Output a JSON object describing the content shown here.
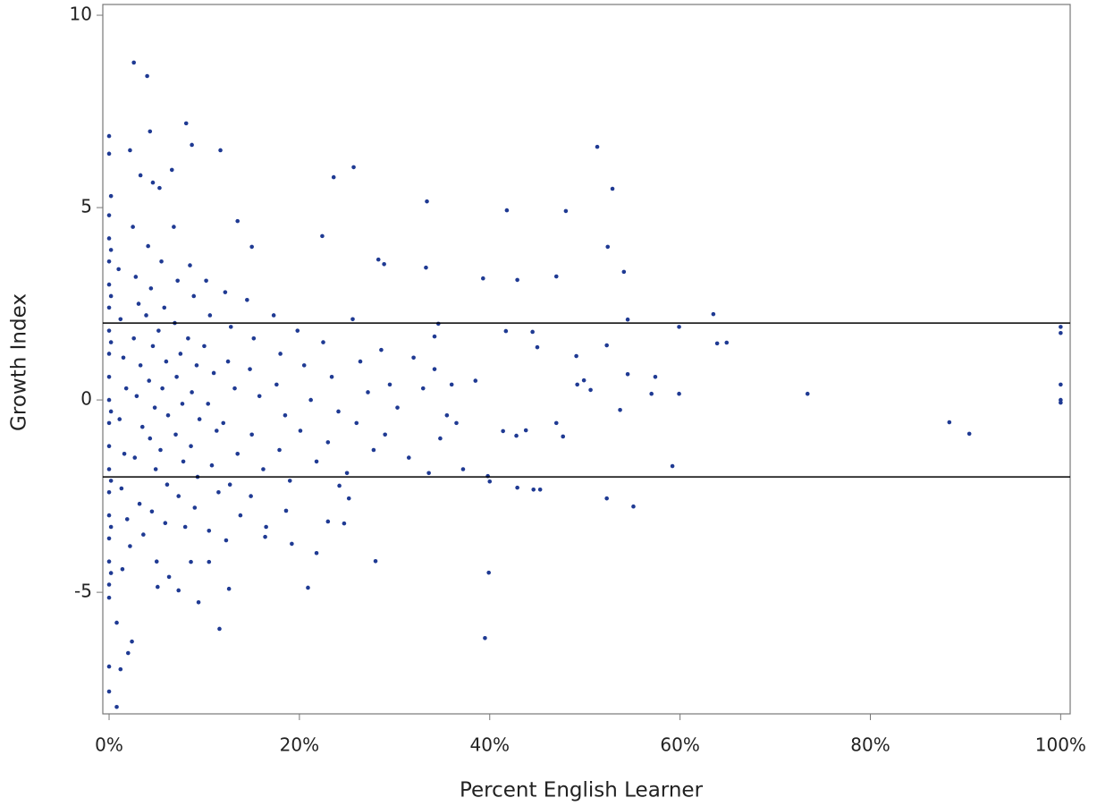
{
  "chart_data": {
    "type": "scatter",
    "x_label": "Percent English Learner",
    "y_label": "Growth Index",
    "color": "#1f3a93",
    "xlim": [
      -0.66,
      101
    ],
    "ylim": [
      -8.16,
      10.28
    ],
    "xticks": [
      {
        "value": 0,
        "label": "0%"
      },
      {
        "value": 20,
        "label": "20%"
      },
      {
        "value": 40,
        "label": "40%"
      },
      {
        "value": 60,
        "label": "60%"
      },
      {
        "value": 80,
        "label": "80%"
      },
      {
        "value": 100,
        "label": "100%"
      }
    ],
    "yticks": [
      -5,
      0,
      5,
      10
    ],
    "hlines": [
      2,
      -2
    ],
    "x": [
      2.6,
      4.0,
      8.1,
      0,
      4.3,
      8.7,
      11.7,
      2.2,
      0,
      6.6,
      3.3,
      4.6,
      5.3,
      25.7,
      23.6,
      51.3,
      52.9,
      33.4,
      41.8,
      48.0,
      13.5,
      52.4,
      22.4,
      15.0,
      28.3,
      28.9,
      33.3,
      39.3,
      42.9,
      47.0,
      54.1,
      63.5,
      100,
      100,
      59.9,
      63.9,
      64.9,
      54.5,
      52.3,
      41.7,
      44.5,
      45.0,
      34.2,
      34.6,
      49.1,
      54.5,
      57.4,
      49.2,
      49.9,
      50.6,
      57.0,
      59.9,
      73.4,
      100,
      100,
      100,
      88.3,
      90.4,
      53.7,
      47.0,
      47.7,
      41.4,
      42.8,
      43.8,
      59.2,
      39.8,
      40.0,
      42.9,
      44.6,
      45.3,
      52.3,
      55.1,
      39.9,
      39.5,
      28.0,
      20.9,
      21.8,
      24.7,
      23.0,
      24.2,
      25.2,
      11.6,
      9.4,
      12.6,
      0.8,
      0,
      2.4,
      0,
      1.2,
      2.0,
      0.8,
      0,
      5.1,
      7.3,
      10.5,
      8.6,
      12.3,
      16.4,
      19.2,
      18.6,
      0,
      0,
      0,
      0,
      0,
      0,
      0,
      0,
      0,
      0,
      0,
      0,
      0,
      0,
      0,
      0,
      0,
      0.2,
      0.2,
      0.2,
      0.2,
      0.2,
      0.2,
      0.2,
      0.2,
      1,
      1.2,
      1.5,
      1.8,
      1.1,
      1.6,
      1.3,
      1.9,
      2.2,
      1.4,
      2.5,
      2.8,
      3.1,
      2.6,
      3.3,
      2.9,
      3.5,
      2.7,
      3.2,
      3.6,
      4.1,
      4.4,
      3.9,
      4.6,
      4.2,
      4.8,
      4.3,
      4.9,
      4.5,
      5.0,
      5.5,
      5.8,
      5.2,
      6.0,
      5.6,
      6.2,
      5.4,
      6.1,
      5.9,
      6.3,
      6.8,
      7.2,
      6.9,
      7.5,
      7.1,
      7.7,
      7.0,
      7.8,
      7.3,
      8.0,
      8.5,
      8.9,
      8.3,
      9.2,
      8.7,
      9.5,
      8.6,
      9.3,
      9.0,
      10.2,
      10.6,
      10.0,
      11.0,
      10.4,
      11.3,
      10.8,
      11.5,
      10.5,
      12.2,
      12.8,
      12.5,
      13.2,
      12.0,
      13.5,
      12.7,
      13.8,
      14.5,
      15.2,
      14.8,
      15.8,
      15.0,
      16.2,
      14.9,
      16.5,
      17.3,
      18.0,
      17.6,
      18.5,
      17.9,
      19.0,
      19.8,
      20.5,
      21.2,
      20.1,
      21.8,
      22.5,
      23.4,
      24.1,
      23.0,
      25.0,
      25.6,
      26.4,
      27.2,
      26.0,
      27.8,
      28.6,
      29.5,
      30.3,
      29.0,
      31.5,
      32.0,
      33.0,
      34.2,
      35.5,
      34.8,
      36.5,
      37.2,
      36.0,
      33.6,
      38.5
    ],
    "values": [
      8.77,
      8.42,
      7.19,
      6.86,
      6.98,
      6.63,
      6.49,
      6.49,
      6.4,
      5.98,
      5.84,
      5.65,
      5.51,
      6.05,
      5.79,
      6.58,
      5.49,
      5.16,
      4.93,
      4.91,
      4.65,
      3.98,
      4.26,
      3.98,
      3.65,
      3.53,
      3.44,
      3.16,
      3.12,
      3.21,
      3.33,
      2.23,
      1.9,
      1.74,
      1.9,
      1.47,
      1.49,
      2.09,
      1.42,
      1.79,
      1.77,
      1.37,
      1.65,
      1.98,
      1.14,
      0.67,
      0.6,
      0.4,
      0.51,
      0.26,
      0.16,
      0.16,
      0.16,
      0.4,
      -0.07,
      0,
      -0.58,
      -0.88,
      -0.26,
      -0.6,
      -0.95,
      -0.81,
      -0.93,
      -0.79,
      -1.72,
      -1.98,
      -2.12,
      -2.28,
      -2.33,
      -2.33,
      -2.56,
      -2.77,
      -4.49,
      -6.19,
      -4.19,
      -4.88,
      -3.98,
      -3.21,
      -3.16,
      -2.23,
      -2.56,
      -5.95,
      -5.26,
      -4.91,
      -7.98,
      -7.58,
      -6.28,
      -6.93,
      -7.0,
      -6.58,
      -5.79,
      -5.14,
      -4.86,
      -4.95,
      -4.21,
      -4.21,
      -3.65,
      -3.56,
      -3.74,
      -2.88,
      4.8,
      4.2,
      3.6,
      3.0,
      2.4,
      1.8,
      1.2,
      0.6,
      0,
      -0.6,
      -1.2,
      -1.8,
      -2.4,
      -3.0,
      -3.6,
      -4.2,
      -4.8,
      5.3,
      3.9,
      2.7,
      1.5,
      -0.3,
      -2.1,
      -3.3,
      -4.5,
      3.4,
      2.1,
      1.1,
      0.3,
      -0.5,
      -1.4,
      -2.3,
      -3.1,
      -3.8,
      -4.4,
      4.5,
      3.2,
      2.5,
      1.6,
      0.9,
      0.1,
      -0.7,
      -1.5,
      -2.7,
      -3.5,
      4.0,
      2.9,
      2.2,
      1.4,
      0.5,
      -0.2,
      -1.0,
      -1.8,
      -2.9,
      -4.2,
      3.6,
      2.4,
      1.8,
      1.0,
      0.3,
      -0.4,
      -1.3,
      -2.2,
      -3.2,
      -4.6,
      4.5,
      3.1,
      2.0,
      1.2,
      0.6,
      -0.1,
      -0.9,
      -1.6,
      -2.5,
      -3.3,
      3.5,
      2.7,
      1.6,
      0.9,
      0.2,
      -0.5,
      -1.2,
      -2.0,
      -2.8,
      3.1,
      2.2,
      1.4,
      0.7,
      -0.1,
      -0.8,
      -1.7,
      -2.4,
      -3.4,
      2.8,
      1.9,
      1.0,
      0.3,
      -0.6,
      -1.4,
      -2.2,
      -3.0,
      2.6,
      1.6,
      0.8,
      0.1,
      -0.9,
      -1.8,
      -2.5,
      -3.3,
      2.2,
      1.2,
      0.4,
      -0.4,
      -1.3,
      -2.1,
      1.8,
      0.9,
      0.0,
      -0.8,
      -1.6,
      1.5,
      0.6,
      -0.3,
      -1.1,
      -1.9,
      2.1,
      1.0,
      0.2,
      -0.6,
      -1.3,
      1.3,
      0.4,
      -0.2,
      -0.9,
      -1.5,
      1.1,
      0.3,
      0.8,
      -0.4,
      -1.0,
      -0.6,
      -1.8,
      0.4,
      -1.9,
      0.5
    ]
  }
}
